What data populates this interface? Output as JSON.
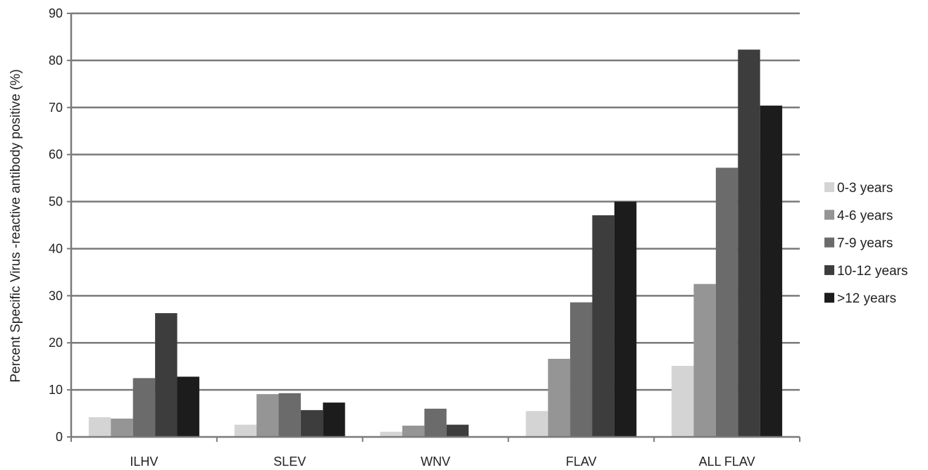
{
  "chart_data": {
    "type": "bar",
    "title": "",
    "xlabel": "",
    "ylabel": "Percent Specific Virus -reactive antibody positive (%)",
    "ylim": [
      0,
      90
    ],
    "yticks": [
      0,
      10,
      20,
      30,
      40,
      50,
      60,
      70,
      80,
      90
    ],
    "grid": true,
    "legend_position": "right",
    "categories": [
      "ILHV",
      "SLEV",
      "WNV",
      "FLAV",
      "ALL FLAV"
    ],
    "series": [
      {
        "name": "0-3 years",
        "color": "#d4d4d4",
        "values": [
          4.2,
          2.6,
          1.1,
          5.5,
          15.1
        ]
      },
      {
        "name": "4-6 years",
        "color": "#959595",
        "values": [
          3.9,
          9.1,
          2.4,
          16.6,
          32.5
        ]
      },
      {
        "name": "7-9 years",
        "color": "#6b6b6b",
        "values": [
          12.5,
          9.3,
          6.0,
          28.6,
          57.2
        ]
      },
      {
        "name": "10-12 years",
        "color": "#3d3d3d",
        "values": [
          26.3,
          5.7,
          2.6,
          47.1,
          82.3
        ]
      },
      {
        "name": ">12 years",
        "color": "#1c1c1c",
        "values": [
          12.8,
          7.3,
          0,
          50.0,
          70.4
        ]
      }
    ]
  }
}
